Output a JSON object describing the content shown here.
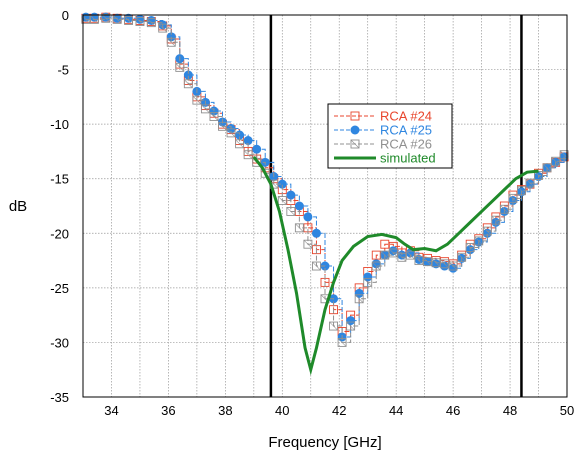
{
  "chart_data": {
    "type": "line",
    "title": "",
    "xlabel": "Frequency [GHz]",
    "ylabel": "dB",
    "xlim": [
      33,
      50
    ],
    "ylim": [
      -35,
      0
    ],
    "xticks": [
      34,
      36,
      38,
      40,
      42,
      44,
      46,
      48,
      50
    ],
    "yticks": [
      0,
      -5,
      -10,
      -15,
      -20,
      -25,
      -30,
      -35
    ],
    "grid": true,
    "legend_position": "top-right",
    "vertical_lines": [
      39.6,
      48.4
    ],
    "series": [
      {
        "name": "RCA #24",
        "color": "#e8452c",
        "marker": "square",
        "x": [
          33.1,
          33.4,
          33.8,
          34.2,
          34.6,
          35.0,
          35.4,
          35.8,
          36.1,
          36.4,
          36.7,
          37.0,
          37.3,
          37.6,
          37.9,
          38.2,
          38.5,
          38.8,
          39.1,
          39.4,
          39.7,
          40.0,
          40.3,
          40.6,
          40.9,
          41.2,
          41.5,
          41.8,
          42.1,
          42.4,
          42.7,
          43.0,
          43.3,
          43.6,
          43.9,
          44.2,
          44.5,
          44.8,
          45.1,
          45.4,
          45.7,
          46.0,
          46.3,
          46.6,
          46.9,
          47.2,
          47.5,
          47.8,
          48.1,
          48.4,
          48.7,
          49.0,
          49.3,
          49.6,
          49.9
        ],
        "y": [
          -0.3,
          -0.3,
          -0.2,
          -0.3,
          -0.4,
          -0.5,
          -0.6,
          -1.0,
          -2.2,
          -4.5,
          -6.0,
          -7.5,
          -8.3,
          -9.0,
          -10.0,
          -10.5,
          -11.5,
          -12.5,
          -13.2,
          -14.0,
          -15.0,
          -16.0,
          -17.0,
          -18.0,
          -19.5,
          -21.5,
          -24.5,
          -27.0,
          -29.0,
          -27.5,
          -25.0,
          -23.5,
          -22.0,
          -21.0,
          -21.2,
          -21.8,
          -21.6,
          -22.2,
          -22.3,
          -22.5,
          -22.6,
          -22.8,
          -22.0,
          -21.0,
          -20.5,
          -19.5,
          -18.5,
          -17.5,
          -16.5,
          -16.0,
          -15.5,
          -14.5,
          -14.0,
          -13.5,
          -13.0
        ]
      },
      {
        "name": "RCA #25",
        "color": "#2f86e0",
        "marker": "circle",
        "x": [
          33.1,
          33.4,
          33.8,
          34.2,
          34.6,
          35.0,
          35.4,
          35.8,
          36.1,
          36.4,
          36.7,
          37.0,
          37.3,
          37.6,
          37.9,
          38.2,
          38.5,
          38.8,
          39.1,
          39.4,
          39.7,
          40.0,
          40.3,
          40.6,
          40.9,
          41.2,
          41.5,
          41.8,
          42.1,
          42.4,
          42.7,
          43.0,
          43.3,
          43.6,
          43.9,
          44.2,
          44.5,
          44.8,
          45.1,
          45.4,
          45.7,
          46.0,
          46.3,
          46.6,
          46.9,
          47.2,
          47.5,
          47.8,
          48.1,
          48.4,
          48.7,
          49.0,
          49.3,
          49.6,
          49.9
        ],
        "y": [
          -0.2,
          -0.2,
          -0.2,
          -0.3,
          -0.3,
          -0.4,
          -0.5,
          -0.9,
          -2.0,
          -4.0,
          -5.5,
          -7.0,
          -8.0,
          -8.8,
          -9.8,
          -10.4,
          -11.0,
          -11.5,
          -12.3,
          -13.5,
          -14.8,
          -15.5,
          -16.5,
          -17.5,
          -18.5,
          -20.0,
          -23.0,
          -26.0,
          -29.5,
          -28.0,
          -25.5,
          -24.0,
          -22.8,
          -22.0,
          -21.6,
          -22.0,
          -21.8,
          -22.4,
          -22.6,
          -22.8,
          -23.0,
          -23.2,
          -22.3,
          -21.5,
          -20.8,
          -20.0,
          -19.0,
          -18.0,
          -17.0,
          -16.2,
          -15.5,
          -14.8,
          -14.0,
          -13.5,
          -13.0
        ]
      },
      {
        "name": "RCA #26",
        "color": "#909090",
        "marker": "square-x",
        "x": [
          33.1,
          33.4,
          33.8,
          34.2,
          34.6,
          35.0,
          35.4,
          35.8,
          36.1,
          36.4,
          36.7,
          37.0,
          37.3,
          37.6,
          37.9,
          38.2,
          38.5,
          38.8,
          39.1,
          39.4,
          39.7,
          40.0,
          40.3,
          40.6,
          40.9,
          41.2,
          41.5,
          41.8,
          42.1,
          42.4,
          42.7,
          43.0,
          43.3,
          43.6,
          43.9,
          44.2,
          44.5,
          44.8,
          45.1,
          45.4,
          45.7,
          46.0,
          46.3,
          46.6,
          46.9,
          47.2,
          47.5,
          47.8,
          48.1,
          48.4,
          48.7,
          49.0,
          49.3,
          49.6,
          49.9
        ],
        "y": [
          -0.4,
          -0.4,
          -0.3,
          -0.4,
          -0.5,
          -0.6,
          -0.7,
          -1.2,
          -2.5,
          -4.8,
          -6.3,
          -7.8,
          -8.6,
          -9.3,
          -10.2,
          -10.8,
          -11.8,
          -12.8,
          -13.5,
          -14.5,
          -15.5,
          -17.0,
          -18.0,
          -19.5,
          -21.0,
          -23.0,
          -26.0,
          -28.5,
          -30.0,
          -28.5,
          -26.0,
          -24.5,
          -23.0,
          -22.0,
          -21.8,
          -22.2,
          -22.0,
          -22.5,
          -22.6,
          -22.7,
          -22.8,
          -23.0,
          -22.2,
          -21.3,
          -20.7,
          -19.8,
          -18.8,
          -17.8,
          -16.8,
          -16.1,
          -15.4,
          -14.7,
          -14.0,
          -13.4,
          -12.8
        ]
      },
      {
        "name": "simulated",
        "color": "#1f8a2a",
        "marker": "none",
        "x": [
          39.0,
          39.3,
          39.6,
          39.9,
          40.2,
          40.5,
          40.8,
          41.0,
          41.2,
          41.5,
          41.8,
          42.1,
          42.5,
          43.0,
          43.5,
          44.0,
          44.3,
          44.6,
          45.0,
          45.4,
          45.8,
          46.2,
          46.6,
          47.0,
          47.4,
          47.8,
          48.2,
          48.6,
          49.0
        ],
        "y": [
          -13.0,
          -14.0,
          -15.5,
          -18.0,
          -21.5,
          -25.5,
          -30.5,
          -32.5,
          -30.5,
          -27.0,
          -24.5,
          -22.5,
          -21.2,
          -20.3,
          -20.1,
          -20.4,
          -21.0,
          -21.5,
          -21.4,
          -21.6,
          -21.0,
          -20.0,
          -19.0,
          -18.0,
          -17.0,
          -16.0,
          -15.0,
          -14.4,
          -14.3
        ]
      }
    ]
  }
}
